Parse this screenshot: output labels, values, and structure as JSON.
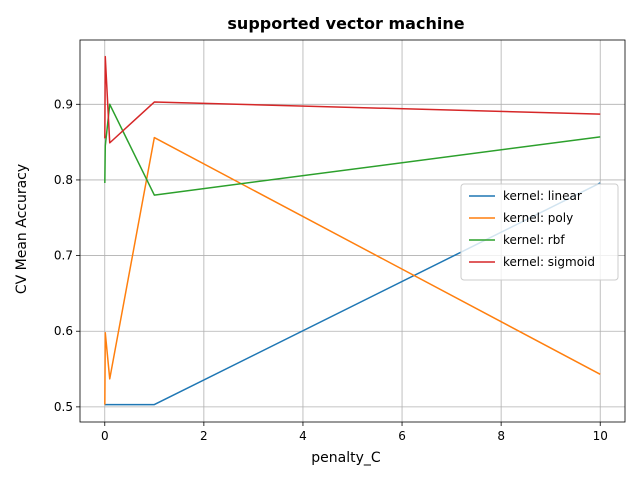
{
  "chart_data": {
    "type": "line",
    "title": "supported vector machine",
    "xlabel": "penalty_C",
    "ylabel": "CV Mean Accuracy",
    "xlim": [
      -0.5,
      10.5
    ],
    "ylim": [
      0.48,
      0.985
    ],
    "xticks": [
      0,
      2,
      4,
      6,
      8,
      10
    ],
    "yticks": [
      0.5,
      0.6,
      0.7,
      0.8,
      0.9
    ],
    "ytick_labels": [
      "0.5",
      "0.6",
      "0.7",
      "0.8",
      "0.9"
    ],
    "grid": true,
    "legend_position": "center-right",
    "series": [
      {
        "name": "kernel: linear",
        "color": "#1f77b4",
        "x": [
          0.001,
          0.01,
          0.1,
          1,
          10
        ],
        "y": [
          0.503,
          0.503,
          0.503,
          0.503,
          0.796
        ]
      },
      {
        "name": "kernel: poly",
        "color": "#ff7f0e",
        "x": [
          0.001,
          0.01,
          0.1,
          1,
          10
        ],
        "y": [
          0.503,
          0.598,
          0.537,
          0.856,
          0.543
        ]
      },
      {
        "name": "kernel: rbf",
        "color": "#2ca02c",
        "x": [
          0.001,
          0.01,
          0.1,
          1,
          10
        ],
        "y": [
          0.796,
          0.845,
          0.9,
          0.78,
          0.857
        ]
      },
      {
        "name": "kernel: sigmoid",
        "color": "#d62728",
        "x": [
          0.001,
          0.01,
          0.1,
          1,
          10
        ],
        "y": [
          0.855,
          0.963,
          0.849,
          0.903,
          0.887
        ]
      }
    ]
  }
}
